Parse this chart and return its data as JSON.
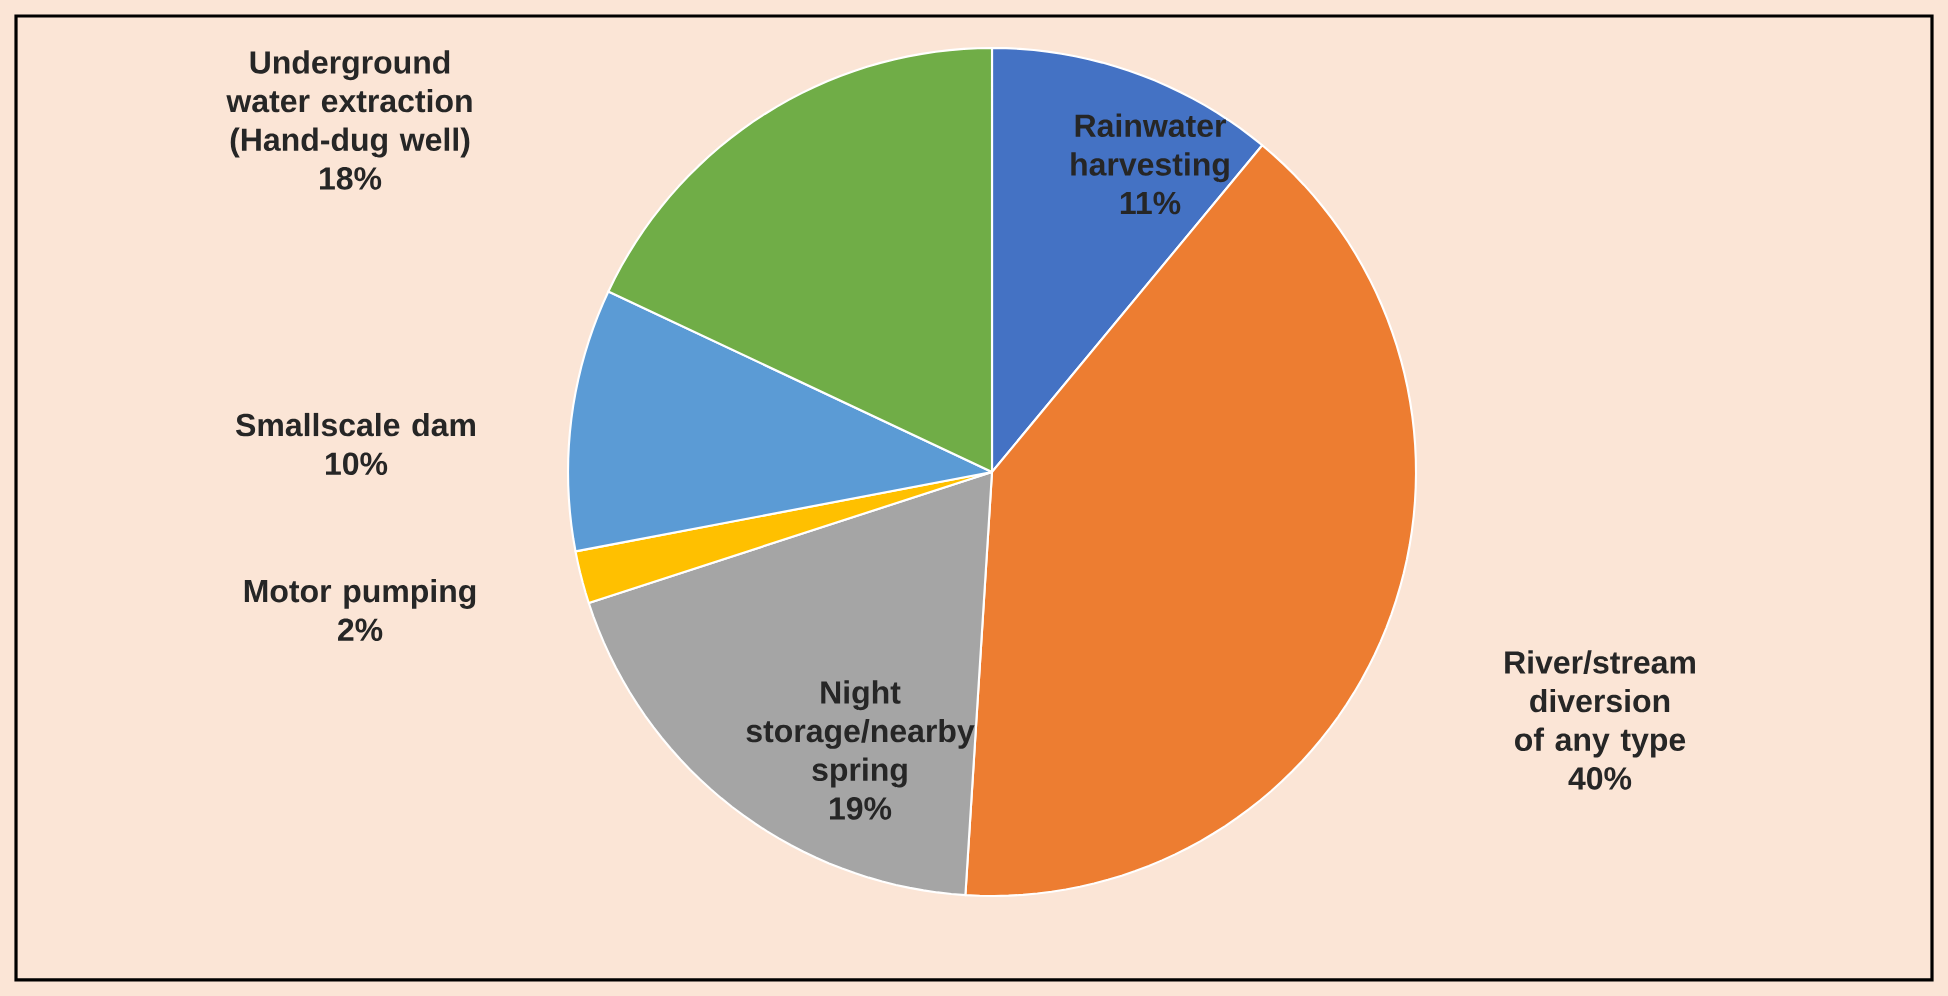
{
  "chart_data": {
    "type": "pie",
    "categories": [
      "Rainwater harvesting",
      "River/stream diversion of any type",
      "Night storage/nearby spring",
      "Motor pumping",
      "Smallscale dam",
      "Underground water extraction (Hand-dug well)"
    ],
    "values": [
      11,
      40,
      19,
      2,
      10,
      18
    ],
    "value_labels": [
      "11%",
      "40%",
      "19%",
      "2%",
      "10%",
      "18%"
    ],
    "colors": [
      "#4472c4",
      "#ed7d31",
      "#a5a5a5",
      "#ffc000",
      "#5b9bd5",
      "#70ad47"
    ]
  }
}
